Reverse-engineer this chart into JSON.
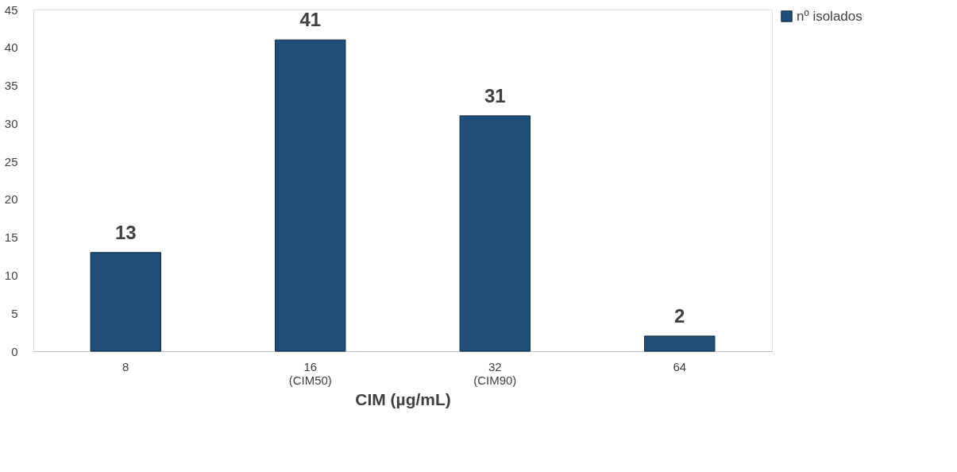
{
  "chart_data": {
    "type": "bar",
    "xlabel": "CIM  (µg/mL)",
    "categories": [
      "8",
      "16\n(CIM50)",
      "32\n(CIM90)",
      "64"
    ],
    "series": [
      {
        "name": "nº isolados",
        "color": "#1f4e79",
        "values": [
          13,
          41,
          31,
          2
        ]
      }
    ],
    "ylim": [
      0,
      45
    ],
    "yticks": [
      0,
      5,
      10,
      15,
      20,
      25,
      30,
      35,
      40,
      45
    ],
    "grid": false,
    "legend": "right",
    "data_labels": true
  }
}
